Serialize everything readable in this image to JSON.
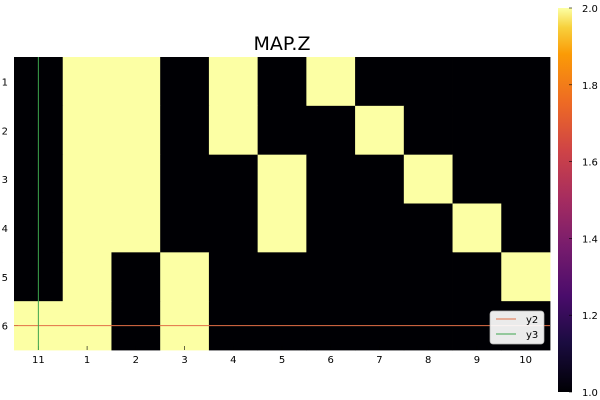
{
  "chart_data": {
    "type": "heatmap",
    "title": "MAP.Z",
    "xlabel": "",
    "ylabel": "",
    "x_categories": [
      "11",
      "1",
      "2",
      "3",
      "4",
      "5",
      "6",
      "7",
      "8",
      "9",
      "10"
    ],
    "y_categories": [
      "1",
      "2",
      "3",
      "4",
      "5",
      "6"
    ],
    "z": [
      [
        1,
        2,
        2,
        1,
        2,
        1,
        2,
        1,
        1,
        1,
        1
      ],
      [
        1,
        2,
        2,
        1,
        2,
        1,
        1,
        2,
        1,
        1,
        1
      ],
      [
        1,
        2,
        2,
        1,
        1,
        2,
        1,
        1,
        2,
        1,
        1
      ],
      [
        1,
        2,
        2,
        1,
        1,
        2,
        1,
        1,
        1,
        2,
        1
      ],
      [
        1,
        2,
        1,
        2,
        1,
        1,
        1,
        1,
        1,
        1,
        2
      ],
      [
        2,
        2,
        1,
        2,
        1,
        1,
        1,
        1,
        1,
        1,
        1
      ]
    ],
    "clim": [
      1.0,
      2.0
    ],
    "colormap": "inferno",
    "colorbar_ticks": [
      "1.0",
      "1.2",
      "1.4",
      "1.6",
      "1.8",
      "2.0"
    ],
    "colorbar_tick_values": [
      1.0,
      1.2,
      1.4,
      1.6,
      1.8,
      2.0
    ],
    "overlay_series": [
      {
        "name": "y2",
        "orientation": "horizontal",
        "value": 5.5,
        "color": "#e26f46"
      },
      {
        "name": "y3",
        "orientation": "vertical",
        "value": 0.5,
        "color": "#3da44d"
      }
    ],
    "legend": {
      "position": "bottom-right",
      "entries": [
        "y2",
        "y3"
      ]
    },
    "colors": {
      "low": "#000004",
      "high": "#fcffa4"
    }
  }
}
